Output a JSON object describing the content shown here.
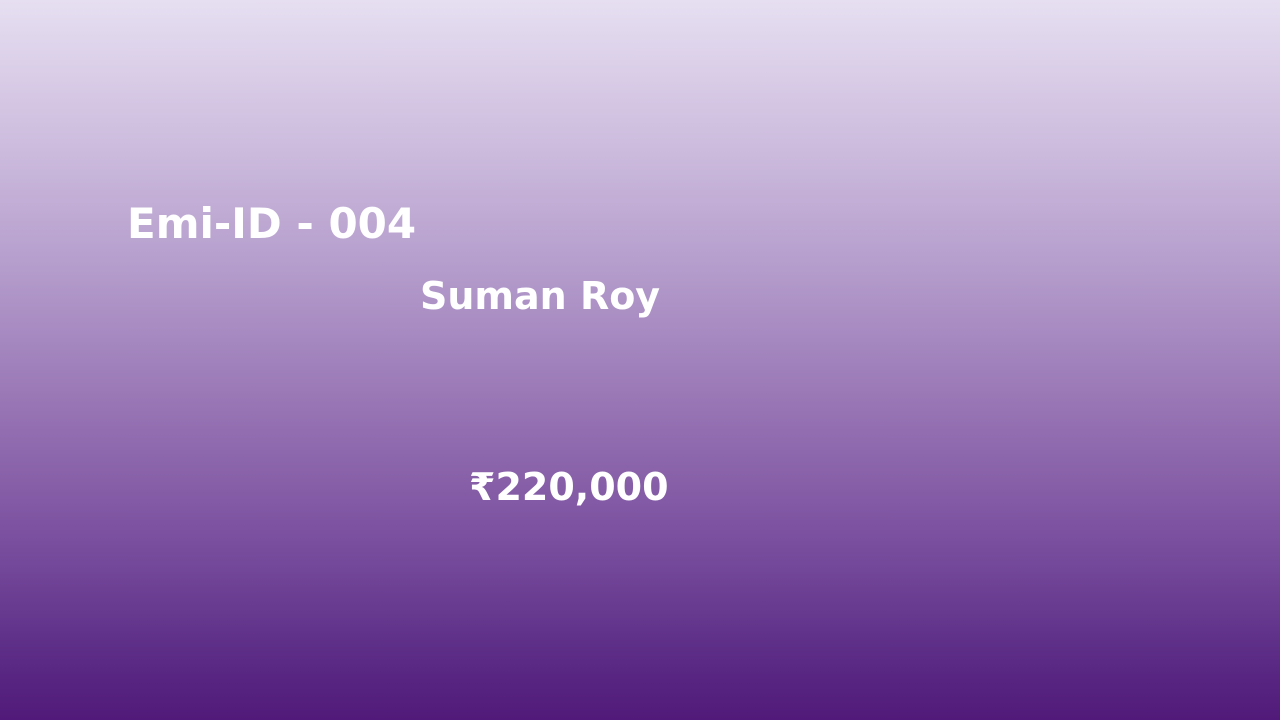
{
  "slide": {
    "emi_id": "Emi-ID - 004",
    "customer_name": "Suman Roy",
    "amount": "₹220,000"
  },
  "colors": {
    "gradient_top": "#e6dff1",
    "gradient_bottom": "#511a7a",
    "text": "#ffffff"
  }
}
